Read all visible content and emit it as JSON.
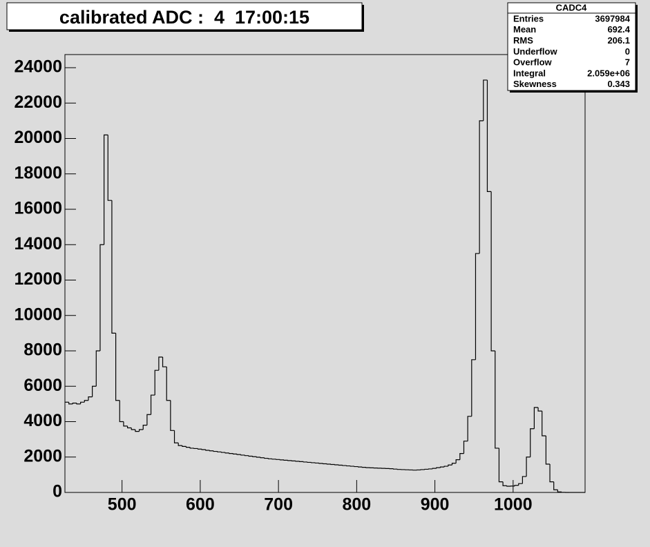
{
  "chart_data": {
    "type": "histogram",
    "title": "calibrated ADC :  4  17:00:15",
    "bins": [
      427,
      432,
      437,
      442,
      447,
      452,
      457,
      462,
      467,
      472,
      477,
      482,
      487,
      492,
      497,
      502,
      507,
      512,
      517,
      522,
      527,
      532,
      537,
      542,
      547,
      552,
      557,
      562,
      567,
      572,
      577,
      582,
      587,
      592,
      597,
      602,
      607,
      612,
      617,
      622,
      627,
      632,
      637,
      642,
      647,
      652,
      657,
      662,
      667,
      672,
      677,
      682,
      687,
      692,
      697,
      702,
      707,
      712,
      717,
      722,
      727,
      732,
      737,
      742,
      747,
      752,
      757,
      762,
      767,
      772,
      777,
      782,
      787,
      792,
      797,
      802,
      807,
      812,
      817,
      822,
      827,
      832,
      837,
      842,
      847,
      852,
      857,
      862,
      867,
      872,
      877,
      882,
      887,
      892,
      897,
      902,
      907,
      912,
      917,
      922,
      927,
      932,
      937,
      942,
      947,
      952,
      957,
      962,
      967,
      972,
      977,
      982,
      987,
      992,
      997,
      1002,
      1007,
      1012,
      1017,
      1022,
      1027,
      1032,
      1037,
      1042,
      1047,
      1052,
      1057,
      1062,
      1067,
      1072,
      1077,
      1082,
      1087,
      1092
    ],
    "counts": [
      5100,
      5000,
      5050,
      5000,
      5100,
      5200,
      5400,
      6000,
      8000,
      14000,
      20200,
      16500,
      9000,
      5200,
      4000,
      3750,
      3650,
      3550,
      3450,
      3550,
      3800,
      4400,
      5500,
      6900,
      7650,
      7100,
      5200,
      3500,
      2800,
      2650,
      2600,
      2550,
      2500,
      2480,
      2450,
      2420,
      2380,
      2350,
      2320,
      2290,
      2260,
      2230,
      2200,
      2170,
      2140,
      2110,
      2080,
      2050,
      2020,
      1990,
      1960,
      1930,
      1900,
      1880,
      1860,
      1840,
      1820,
      1800,
      1780,
      1760,
      1740,
      1720,
      1700,
      1680,
      1660,
      1640,
      1620,
      1600,
      1580,
      1560,
      1540,
      1520,
      1500,
      1480,
      1460,
      1440,
      1420,
      1400,
      1390,
      1380,
      1370,
      1360,
      1350,
      1340,
      1320,
      1300,
      1290,
      1280,
      1270,
      1260,
      1270,
      1290,
      1310,
      1330,
      1360,
      1400,
      1440,
      1480,
      1550,
      1650,
      1850,
      2200,
      2900,
      4300,
      7500,
      13500,
      21000,
      23300,
      17000,
      8000,
      2500,
      600,
      380,
      350,
      360,
      400,
      500,
      900,
      2000,
      3600,
      4800,
      4600,
      3200,
      1600,
      600,
      150,
      30,
      5,
      0,
      0,
      0,
      0,
      0
    ],
    "color": "#000000",
    "xlim": [
      427,
      1092
    ],
    "ylim": [
      0,
      24741
    ],
    "xticks": [
      500,
      600,
      700,
      800,
      900,
      1000
    ],
    "yticks": [
      0,
      2000,
      4000,
      6000,
      8000,
      10000,
      12000,
      14000,
      16000,
      18000,
      20000,
      22000,
      24000
    ],
    "stats": {
      "title": "CADC4",
      "rows": [
        {
          "label": "Entries",
          "value": "3697984"
        },
        {
          "label": "Mean",
          "value": "692.4"
        },
        {
          "label": "RMS",
          "value": "206.1"
        },
        {
          "label": "Underflow",
          "value": "0"
        },
        {
          "label": "Overflow",
          "value": "7"
        },
        {
          "label": "Integral",
          "value": "2.059e+06"
        },
        {
          "label": "Skewness",
          "value": "0.343"
        }
      ]
    }
  }
}
